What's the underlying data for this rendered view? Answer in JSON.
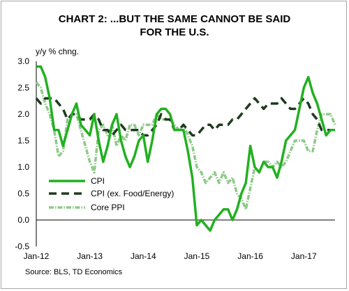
{
  "chart_data": {
    "type": "line",
    "title_lines": [
      "CHART 2: ...BUT THE SAME CANNOT BE SAID",
      "FOR THE U.S."
    ],
    "ylabel": "y/y % chng.",
    "xlabel": "",
    "ylim": [
      -0.5,
      3.0
    ],
    "yticks": [
      "3.0",
      "2.5",
      "2.0",
      "1.5",
      "1.0",
      "0.5",
      "0.0",
      "-0.5"
    ],
    "x_start": "Jan-12",
    "xticks": [
      {
        "label": "Jan-12",
        "index": 0
      },
      {
        "label": "Jan-13",
        "index": 12
      },
      {
        "label": "Jan-14",
        "index": 24
      },
      {
        "label": "Jan-15",
        "index": 36
      },
      {
        "label": "Jan-16",
        "index": 48
      },
      {
        "label": "Jan-17",
        "index": 60
      }
    ],
    "legend_position": "bottom-left",
    "source": "Source: BLS, TD Economics",
    "series": [
      {
        "name": "CPI",
        "color": "#22b021",
        "style": "solid",
        "values": [
          2.9,
          2.9,
          2.7,
          2.3,
          1.7,
          1.7,
          1.4,
          1.7,
          2.0,
          2.2,
          1.8,
          1.7,
          1.6,
          2.0,
          1.5,
          1.1,
          1.4,
          1.8,
          2.0,
          1.5,
          1.2,
          1.0,
          1.2,
          1.5,
          1.6,
          1.1,
          1.5,
          2.0,
          2.1,
          2.1,
          2.0,
          1.7,
          1.7,
          1.7,
          1.3,
          0.8,
          -0.1,
          0.0,
          -0.1,
          -0.2,
          0.0,
          0.1,
          0.2,
          0.2,
          0.0,
          0.2,
          0.5,
          0.7,
          1.4,
          1.0,
          0.9,
          1.1,
          1.0,
          1.0,
          0.8,
          1.1,
          1.5,
          1.6,
          1.7,
          2.1,
          2.5,
          2.7,
          2.4,
          2.2,
          1.9,
          1.6,
          1.7,
          1.7
        ]
      },
      {
        "name": "CPI (ex. Food/Energy)",
        "color": "#1e3a1e",
        "style": "dashed",
        "values": [
          2.3,
          2.2,
          2.3,
          2.3,
          2.3,
          2.2,
          2.1,
          1.9,
          2.0,
          2.0,
          1.9,
          1.9,
          1.9,
          2.0,
          1.9,
          1.7,
          1.7,
          1.6,
          1.7,
          1.8,
          1.7,
          1.7,
          1.7,
          1.7,
          1.6,
          1.6,
          1.7,
          1.8,
          2.0,
          1.9,
          1.9,
          1.7,
          1.7,
          1.8,
          1.7,
          1.6,
          1.6,
          1.7,
          1.8,
          1.8,
          1.7,
          1.8,
          1.8,
          1.8,
          1.9,
          1.9,
          2.0,
          2.1,
          2.2,
          2.3,
          2.2,
          2.1,
          2.2,
          2.2,
          2.2,
          2.3,
          2.2,
          2.1,
          2.1,
          2.2,
          2.3,
          2.2,
          2.0,
          1.9,
          1.7,
          1.7,
          1.7,
          1.7
        ]
      },
      {
        "name": "Core PPI",
        "color": "#8fc98a",
        "style": "dotted",
        "values": [
          2.6,
          2.5,
          2.2,
          2.0,
          1.7,
          1.2,
          1.3,
          1.9,
          2.0,
          2.0,
          1.7,
          1.4,
          1.1,
          0.9,
          1.7,
          1.8,
          1.6,
          1.8,
          1.4,
          1.6,
          1.5,
          1.8,
          1.8,
          1.6,
          1.8,
          1.8,
          1.8,
          2.0,
          1.9,
          1.9,
          1.9,
          1.8,
          1.7,
          1.8,
          1.6,
          1.4,
          1.0,
          0.9,
          0.7,
          0.8,
          0.9,
          0.7,
          0.9,
          0.7,
          0.8,
          0.5,
          0.4,
          0.2,
          0.6,
          1.0,
          0.9,
          1.1,
          1.1,
          1.0,
          1.1,
          1.0,
          1.1,
          1.3,
          1.5,
          1.5,
          1.5,
          1.3,
          1.3,
          1.7,
          2.0,
          2.0,
          2.0,
          1.8
        ]
      }
    ]
  }
}
